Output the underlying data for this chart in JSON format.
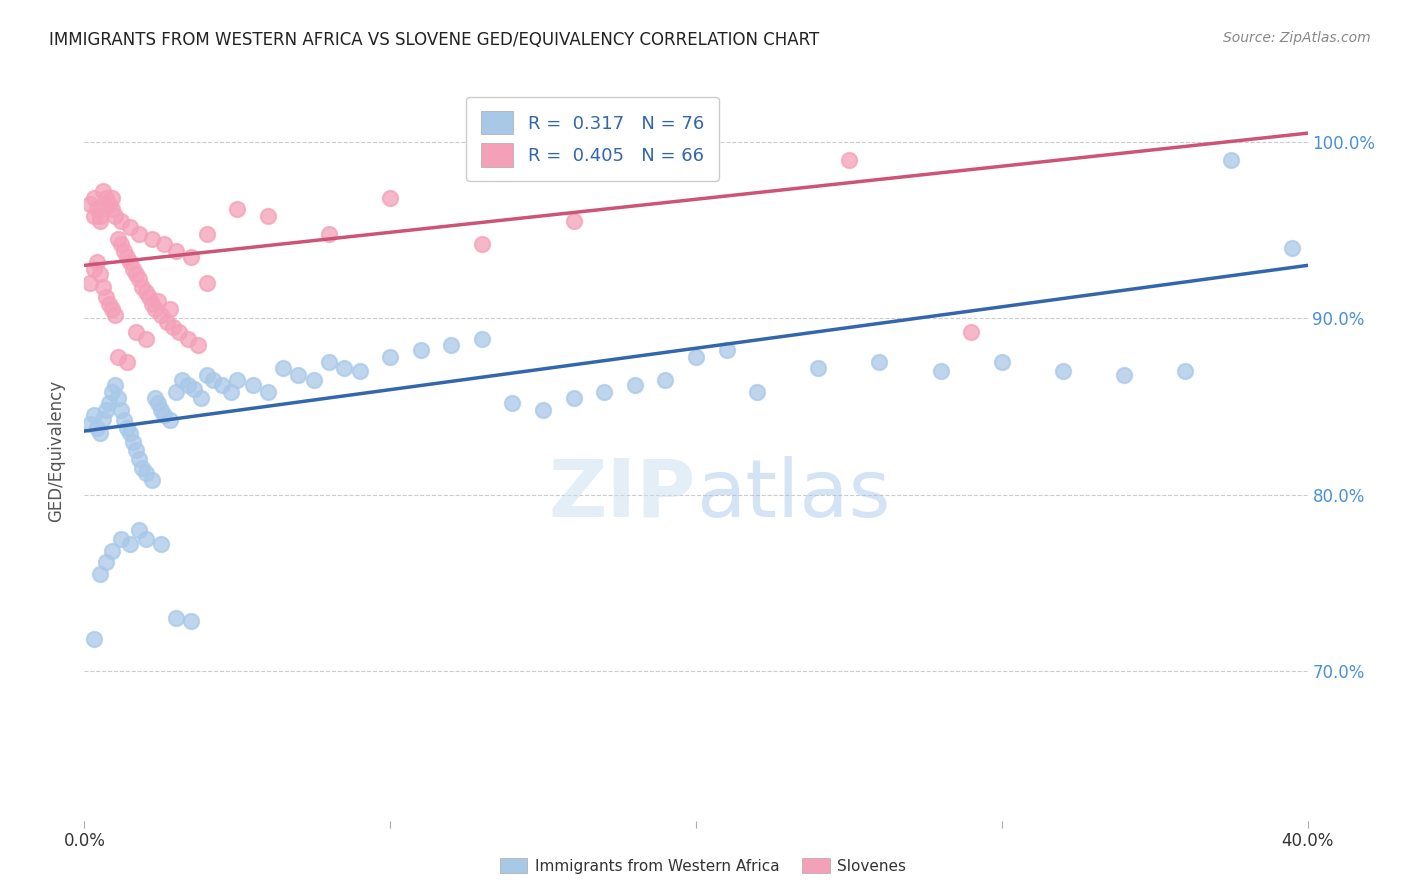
{
  "title": "IMMIGRANTS FROM WESTERN AFRICA VS SLOVENE GED/EQUIVALENCY CORRELATION CHART",
  "source": "Source: ZipAtlas.com",
  "ylabel": "GED/Equivalency",
  "xlim": [
    0.0,
    0.4
  ],
  "ylim": [
    0.615,
    1.035
  ],
  "yticks": [
    0.7,
    0.8,
    0.9,
    1.0
  ],
  "ytick_labels": [
    "70.0%",
    "80.0%",
    "90.0%",
    "100.0%"
  ],
  "xticks": [
    0.0,
    0.1,
    0.2,
    0.3,
    0.4
  ],
  "xtick_labels": [
    "0.0%",
    "",
    "",
    "",
    "40.0%"
  ],
  "legend_label1": "Immigrants from Western Africa",
  "legend_label2": "Slovenes",
  "blue_color": "#A8C8E8",
  "pink_color": "#F4A0B8",
  "trendline_blue": "#3366AA",
  "trendline_pink": "#CC5577",
  "blue_scatter_x": [
    0.002,
    0.003,
    0.004,
    0.005,
    0.006,
    0.007,
    0.008,
    0.009,
    0.01,
    0.011,
    0.012,
    0.013,
    0.014,
    0.015,
    0.016,
    0.017,
    0.018,
    0.019,
    0.02,
    0.022,
    0.023,
    0.024,
    0.025,
    0.026,
    0.028,
    0.03,
    0.032,
    0.034,
    0.036,
    0.038,
    0.04,
    0.042,
    0.045,
    0.048,
    0.05,
    0.055,
    0.06,
    0.065,
    0.07,
    0.075,
    0.08,
    0.085,
    0.09,
    0.1,
    0.11,
    0.12,
    0.13,
    0.14,
    0.15,
    0.16,
    0.17,
    0.18,
    0.19,
    0.2,
    0.21,
    0.22,
    0.24,
    0.26,
    0.28,
    0.3,
    0.32,
    0.34,
    0.36,
    0.375,
    0.395,
    0.003,
    0.005,
    0.007,
    0.009,
    0.012,
    0.015,
    0.018,
    0.02,
    0.025,
    0.03,
    0.035
  ],
  "blue_scatter_y": [
    0.84,
    0.845,
    0.838,
    0.835,
    0.843,
    0.848,
    0.852,
    0.858,
    0.862,
    0.855,
    0.848,
    0.842,
    0.838,
    0.835,
    0.83,
    0.825,
    0.82,
    0.815,
    0.812,
    0.808,
    0.855,
    0.852,
    0.848,
    0.845,
    0.842,
    0.858,
    0.865,
    0.862,
    0.86,
    0.855,
    0.868,
    0.865,
    0.862,
    0.858,
    0.865,
    0.862,
    0.858,
    0.872,
    0.868,
    0.865,
    0.875,
    0.872,
    0.87,
    0.878,
    0.882,
    0.885,
    0.888,
    0.852,
    0.848,
    0.855,
    0.858,
    0.862,
    0.865,
    0.878,
    0.882,
    0.858,
    0.872,
    0.875,
    0.87,
    0.875,
    0.87,
    0.868,
    0.87,
    0.99,
    0.94,
    0.718,
    0.755,
    0.762,
    0.768,
    0.775,
    0.772,
    0.78,
    0.775,
    0.772,
    0.73,
    0.728
  ],
  "pink_scatter_x": [
    0.002,
    0.003,
    0.004,
    0.005,
    0.006,
    0.007,
    0.008,
    0.009,
    0.01,
    0.011,
    0.012,
    0.013,
    0.014,
    0.015,
    0.016,
    0.017,
    0.018,
    0.019,
    0.02,
    0.021,
    0.022,
    0.023,
    0.025,
    0.027,
    0.029,
    0.031,
    0.034,
    0.037,
    0.04,
    0.002,
    0.003,
    0.004,
    0.005,
    0.006,
    0.007,
    0.008,
    0.009,
    0.01,
    0.012,
    0.015,
    0.018,
    0.022,
    0.026,
    0.03,
    0.035,
    0.04,
    0.05,
    0.06,
    0.08,
    0.1,
    0.13,
    0.16,
    0.2,
    0.25,
    0.29,
    0.003,
    0.005,
    0.007,
    0.009,
    0.011,
    0.014,
    0.017,
    0.02,
    0.024,
    0.028
  ],
  "pink_scatter_y": [
    0.92,
    0.928,
    0.932,
    0.925,
    0.918,
    0.912,
    0.908,
    0.905,
    0.902,
    0.945,
    0.942,
    0.938,
    0.935,
    0.932,
    0.928,
    0.925,
    0.922,
    0.918,
    0.915,
    0.912,
    0.908,
    0.905,
    0.902,
    0.898,
    0.895,
    0.892,
    0.888,
    0.885,
    0.92,
    0.965,
    0.968,
    0.962,
    0.958,
    0.972,
    0.968,
    0.965,
    0.962,
    0.958,
    0.955,
    0.952,
    0.948,
    0.945,
    0.942,
    0.938,
    0.935,
    0.948,
    0.962,
    0.958,
    0.948,
    0.968,
    0.942,
    0.955,
    0.985,
    0.99,
    0.892,
    0.958,
    0.955,
    0.965,
    0.968,
    0.878,
    0.875,
    0.892,
    0.888,
    0.91,
    0.905
  ],
  "trendline_blue_x0": 0.0,
  "trendline_blue_y0": 0.836,
  "trendline_blue_x1": 0.4,
  "trendline_blue_y1": 0.93,
  "trendline_pink_x0": 0.0,
  "trendline_pink_y0": 0.93,
  "trendline_pink_x1": 0.4,
  "trendline_pink_y1": 1.005
}
